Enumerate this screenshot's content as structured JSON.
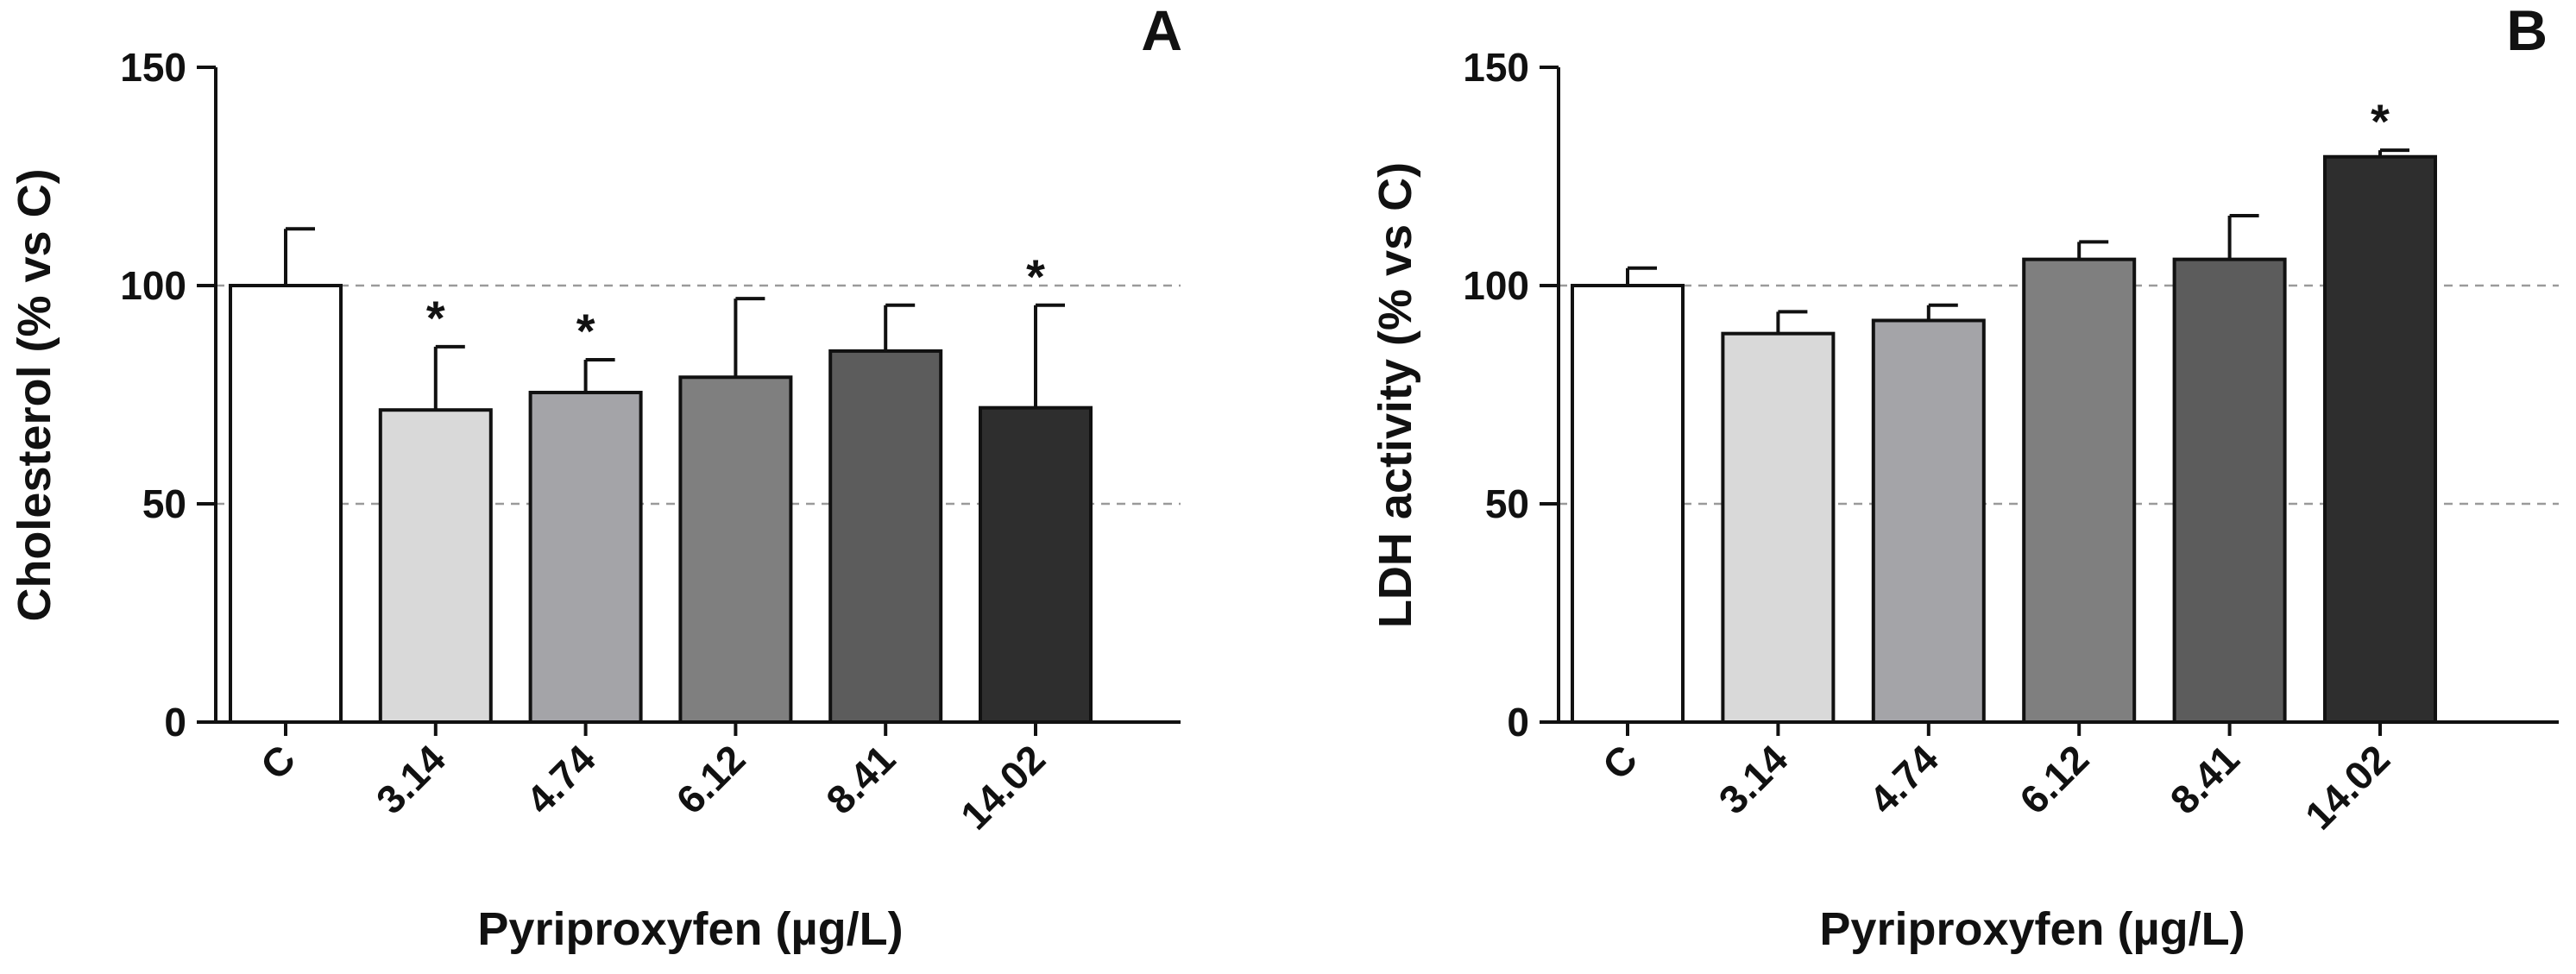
{
  "chart_data": [
    {
      "panel": "A",
      "type": "bar",
      "ylabel": "Cholesterol (% vs C)",
      "xlabel": "Pyriproxyfen (µg/L)",
      "ylim": [
        0,
        150
      ],
      "yticks": [
        0,
        50,
        100,
        150
      ],
      "reference_lines": [
        50,
        100
      ],
      "categories": [
        "C",
        "3.14",
        "4.74",
        "6.12",
        "8.41",
        "14.02"
      ],
      "values": [
        100,
        71.5,
        75.5,
        79,
        85,
        72
      ],
      "errors": [
        13,
        14.5,
        7.5,
        18,
        10.5,
        23.5
      ],
      "significance": [
        "",
        "*",
        "*",
        "",
        "",
        "*"
      ],
      "bar_colors": [
        "#ffffff",
        "#d9d9d9",
        "#a4a4a8",
        "#7f7f7f",
        "#5c5c5c",
        "#2e2e2e"
      ]
    },
    {
      "panel": "B",
      "type": "bar",
      "ylabel": "LDH activity (% vs C)",
      "xlabel": "Pyriproxyfen (µg/L)",
      "ylim": [
        0,
        150
      ],
      "yticks": [
        0,
        50,
        100,
        150
      ],
      "reference_lines": [
        50,
        100
      ],
      "categories": [
        "C",
        "3.14",
        "4.74",
        "6.12",
        "8.41",
        "14.02"
      ],
      "values": [
        100,
        89,
        92,
        106,
        106,
        129.5
      ],
      "errors": [
        4,
        5,
        3.5,
        4,
        10,
        1.5
      ],
      "significance": [
        "",
        "",
        "",
        "",
        "",
        "*"
      ],
      "bar_colors": [
        "#ffffff",
        "#d9d9d9",
        "#a4a4a8",
        "#7f7f7f",
        "#5c5c5c",
        "#2e2e2e"
      ]
    }
  ]
}
